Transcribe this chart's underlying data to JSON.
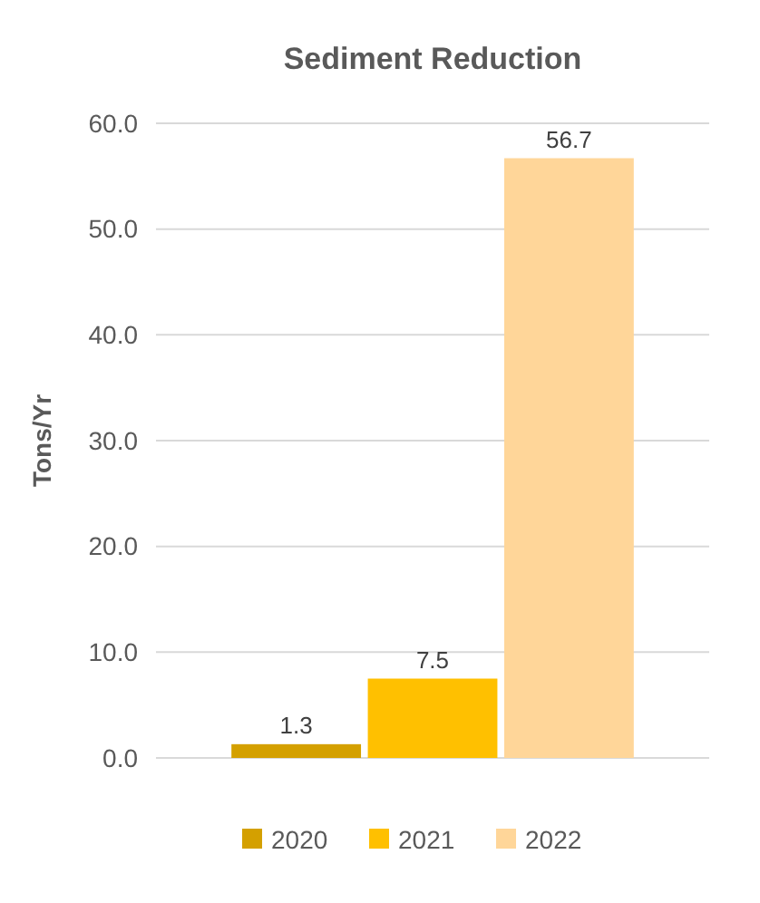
{
  "chart_data": {
    "type": "bar",
    "title": "Sediment Reduction",
    "ylabel": "Tons/Yr",
    "categories": [
      null
    ],
    "series": [
      {
        "name": "2020",
        "color": "#d4a000",
        "values": [
          1.3
        ]
      },
      {
        "name": "2021",
        "color": "#ffc000",
        "values": [
          7.5
        ]
      },
      {
        "name": "2022",
        "color": "#ffd699",
        "values": [
          56.7
        ]
      }
    ],
    "ylim": [
      0,
      60
    ],
    "yticks": [
      {
        "value": 0,
        "label": "0.0"
      },
      {
        "value": 10,
        "label": "10.0"
      },
      {
        "value": 20,
        "label": "20.0"
      },
      {
        "value": 30,
        "label": "30.0"
      },
      {
        "value": 40,
        "label": "40.0"
      },
      {
        "value": 50,
        "label": "50.0"
      },
      {
        "value": 60,
        "label": "60.0"
      }
    ],
    "grid": "y",
    "data_labels": true,
    "legend": "bottom"
  }
}
